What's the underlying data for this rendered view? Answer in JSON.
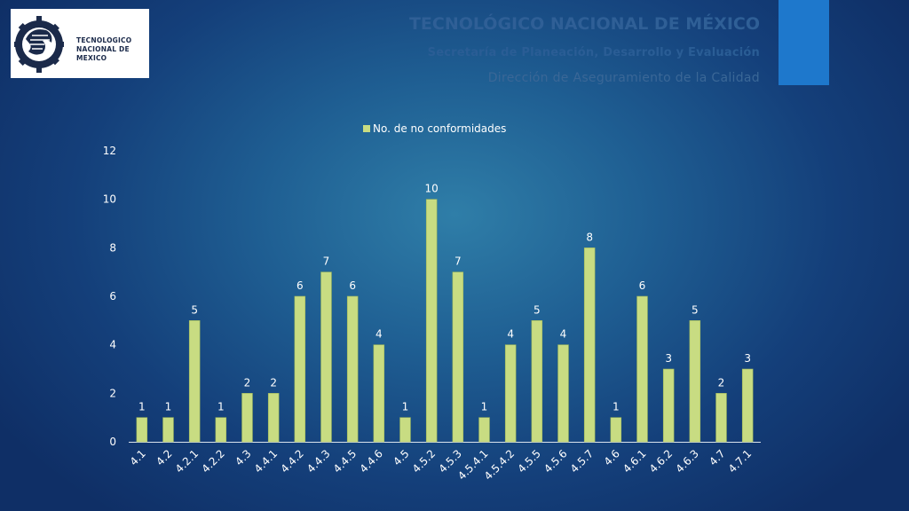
{
  "header": {
    "logo_text": "TECNOLOGICO\nNACIONAL DE MEXICO",
    "title": "TECNOLÓGICO NACIONAL DE MÉXICO",
    "subtitle": "Secretaría de Planeación, Desarrollo y Evaluación",
    "subtitle2": "Dirección de Aseguramiento de la Calidad"
  },
  "colors": {
    "bar": "#c8dc82",
    "accent": "#1e78cc",
    "text": "#ffffff"
  },
  "chart_data": {
    "type": "bar",
    "categories": [
      "4.1",
      "4.2",
      "4.2.1",
      "4.2.2",
      "4.3",
      "4.4.1",
      "4.4.2",
      "4.4.3",
      "4.4.5",
      "4.4.6",
      "4.5",
      "4.5.2",
      "4.5.3",
      "4.5.4.1",
      "4.5.4.2",
      "4.5.5",
      "4.5.6",
      "4.5.7",
      "4.6",
      "4.6.1",
      "4.6.2",
      "4.6.3",
      "4.7",
      "4.7.1"
    ],
    "series": [
      {
        "name": "No. de no conformidades",
        "values": [
          1,
          1,
          5,
          1,
          2,
          2,
          6,
          7,
          6,
          4,
          1,
          10,
          7,
          1,
          4,
          5,
          4,
          8,
          1,
          6,
          3,
          5,
          2,
          3
        ]
      }
    ],
    "ylim": [
      0,
      12
    ],
    "yticks": [
      0,
      2,
      4,
      6,
      8,
      10,
      12
    ],
    "data_labels": true,
    "legend": "top-center",
    "grid": false
  }
}
